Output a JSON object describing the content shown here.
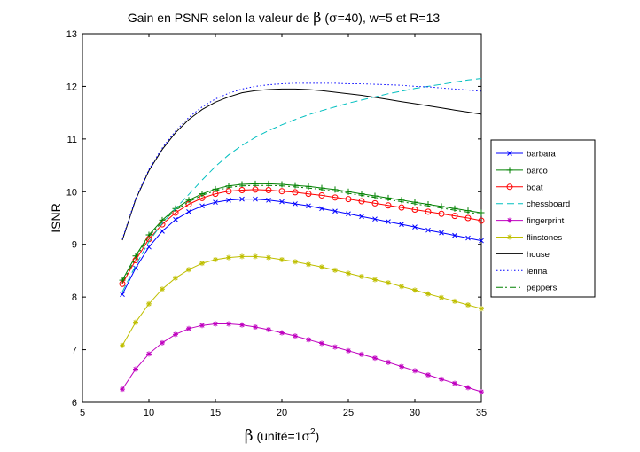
{
  "chart_data": {
    "type": "line",
    "title": "Gain en PSNR selon la valeur de β (σ=40), w=5 et R=13",
    "title_parts": {
      "before": "Gain en PSNR selon la valeur de ",
      "beta": "β",
      "open": " (",
      "sigma": "σ",
      "after": "=40), w=5 et R=13"
    },
    "xlabel": "β (unité=1σ²)",
    "xlabel_parts": {
      "beta": "β",
      "before": " (unité=1",
      "sigma": "σ",
      "sup": "2",
      "after": ")"
    },
    "ylabel": "ISNR",
    "xlim": [
      5,
      35
    ],
    "ylim": [
      6,
      13
    ],
    "xticks": [
      "5",
      "10",
      "15",
      "20",
      "25",
      "30",
      "35"
    ],
    "yticks": [
      "6",
      "7",
      "8",
      "9",
      "10",
      "11",
      "12",
      "13"
    ],
    "grid": false,
    "legend_position": "outside-right",
    "x": [
      8,
      9,
      10,
      11,
      12,
      13,
      14,
      15,
      16,
      17,
      18,
      19,
      20,
      21,
      22,
      23,
      24,
      25,
      26,
      27,
      28,
      29,
      30,
      31,
      32,
      33,
      34,
      35
    ],
    "series": [
      {
        "name": "barbara",
        "color": "#0000ff",
        "marker": "x",
        "dash": "",
        "values": [
          8.05,
          8.55,
          8.95,
          9.25,
          9.47,
          9.62,
          9.73,
          9.8,
          9.84,
          9.86,
          9.86,
          9.84,
          9.81,
          9.77,
          9.73,
          9.68,
          9.63,
          9.58,
          9.53,
          9.48,
          9.43,
          9.38,
          9.33,
          9.27,
          9.22,
          9.17,
          9.12,
          9.07
        ]
      },
      {
        "name": "barco",
        "color": "#008000",
        "marker": "+",
        "dash": "",
        "values": [
          8.32,
          8.78,
          9.18,
          9.46,
          9.68,
          9.84,
          9.96,
          10.05,
          10.11,
          10.14,
          10.15,
          10.15,
          10.14,
          10.12,
          10.1,
          10.07,
          10.04,
          10.0,
          9.96,
          9.92,
          9.88,
          9.84,
          9.8,
          9.76,
          9.72,
          9.68,
          9.64,
          9.6
        ]
      },
      {
        "name": "boat",
        "color": "#ff0000",
        "marker": "o",
        "dash": "",
        "values": [
          8.25,
          8.7,
          9.1,
          9.38,
          9.6,
          9.76,
          9.88,
          9.96,
          10.01,
          10.03,
          10.04,
          10.03,
          10.01,
          9.99,
          9.96,
          9.93,
          9.89,
          9.86,
          9.82,
          9.78,
          9.74,
          9.7,
          9.66,
          9.62,
          9.58,
          9.54,
          9.5,
          9.45
        ]
      },
      {
        "name": "chessboard",
        "color": "#00bfbf",
        "marker": "",
        "dash": "8,4",
        "values": [
          8.1,
          8.6,
          9.05,
          9.4,
          9.68,
          9.95,
          10.22,
          10.48,
          10.7,
          10.88,
          11.03,
          11.16,
          11.27,
          11.37,
          11.46,
          11.54,
          11.61,
          11.68,
          11.74,
          11.8,
          11.86,
          11.91,
          11.96,
          12.0,
          12.04,
          12.08,
          12.12,
          12.15
        ]
      },
      {
        "name": "fingerprint",
        "color": "#bf00bf",
        "marker": "*",
        "dash": "",
        "values": [
          6.25,
          6.63,
          6.92,
          7.13,
          7.29,
          7.4,
          7.46,
          7.49,
          7.49,
          7.47,
          7.43,
          7.38,
          7.32,
          7.26,
          7.19,
          7.12,
          7.05,
          6.98,
          6.91,
          6.84,
          6.76,
          6.68,
          6.6,
          6.52,
          6.44,
          6.36,
          6.28,
          6.2
        ]
      },
      {
        "name": "flinstones",
        "color": "#bfbf00",
        "marker": "*",
        "dash": "",
        "values": [
          7.08,
          7.52,
          7.87,
          8.15,
          8.36,
          8.52,
          8.64,
          8.71,
          8.75,
          8.77,
          8.77,
          8.75,
          8.71,
          8.67,
          8.62,
          8.57,
          8.51,
          8.45,
          8.39,
          8.33,
          8.27,
          8.2,
          8.13,
          8.06,
          7.99,
          7.92,
          7.85,
          7.78
        ]
      },
      {
        "name": "house",
        "color": "#000000",
        "marker": "",
        "dash": "",
        "values": [
          9.08,
          9.85,
          10.4,
          10.8,
          11.12,
          11.37,
          11.56,
          11.7,
          11.8,
          11.88,
          11.92,
          11.94,
          11.95,
          11.95,
          11.94,
          11.92,
          11.89,
          11.86,
          11.83,
          11.79,
          11.75,
          11.71,
          11.67,
          11.63,
          11.59,
          11.55,
          11.51,
          11.47
        ]
      },
      {
        "name": "lenna",
        "color": "#0000ff",
        "marker": "",
        "dash": "1.5,2.5",
        "values": [
          9.1,
          9.87,
          10.42,
          10.83,
          11.15,
          11.41,
          11.61,
          11.76,
          11.87,
          11.95,
          12.0,
          12.03,
          12.05,
          12.06,
          12.06,
          12.06,
          12.06,
          12.05,
          12.05,
          12.04,
          12.03,
          12.02,
          12.0,
          11.99,
          11.97,
          11.95,
          11.93,
          11.91
        ]
      },
      {
        "name": "peppers",
        "color": "#008000",
        "marker": "",
        "dash": "7,3,2,3",
        "values": [
          8.28,
          8.74,
          9.15,
          9.43,
          9.65,
          9.81,
          9.93,
          10.02,
          10.08,
          10.11,
          10.12,
          10.12,
          10.11,
          10.09,
          10.07,
          10.04,
          10.01,
          9.97,
          9.93,
          9.89,
          9.85,
          9.81,
          9.77,
          9.73,
          9.69,
          9.65,
          9.61,
          9.57
        ]
      }
    ]
  }
}
